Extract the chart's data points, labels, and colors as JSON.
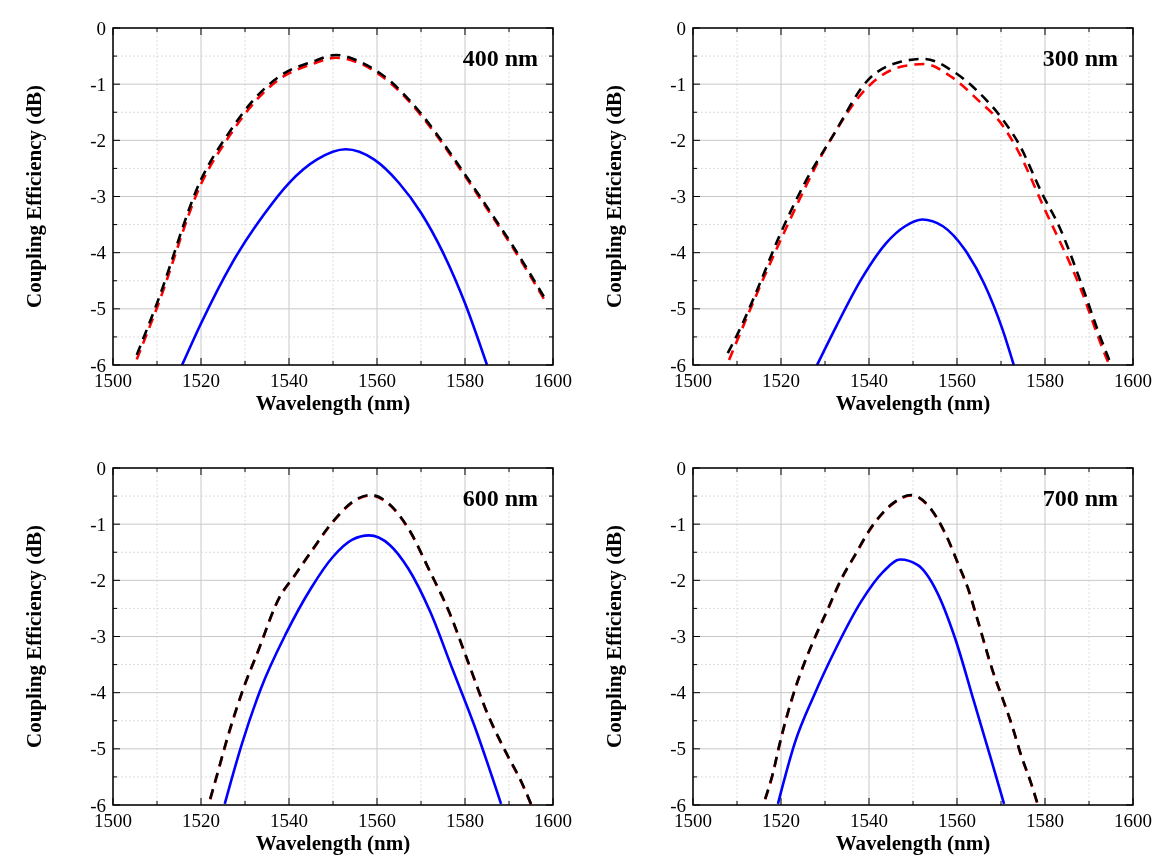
{
  "chart_data": [
    {
      "type": "line",
      "xlabel": "Wavelength (nm)",
      "ylabel": "Coupling Efficiency (dB)",
      "annotations": [
        "400 nm"
      ],
      "xlim": [
        1500,
        1600
      ],
      "ylim": [
        -6,
        0
      ],
      "grid": true,
      "xticks": [
        1500,
        {
          "value": 1510,
          "label": null
        },
        1520,
        {
          "value": 1530,
          "label": null
        },
        1540,
        {
          "value": 1550,
          "label": null
        },
        1560,
        {
          "value": 1570,
          "label": null
        },
        1580,
        {
          "value": 1590,
          "label": null
        },
        1600
      ],
      "yticks": [
        -6,
        {
          "value": -5.5,
          "label": null
        },
        -5,
        {
          "value": -4.5,
          "label": null
        },
        -4,
        {
          "value": -3.5,
          "label": null
        },
        -3,
        {
          "value": -2.5,
          "label": null
        },
        -2,
        {
          "value": -1.5,
          "label": null
        },
        -1,
        {
          "value": -0.5,
          "label": null
        },
        0
      ],
      "series": [
        {
          "color": "#ff0000",
          "line_style": "dashed",
          "x": [
            1505.4,
            1510,
            1520,
            1526.4,
            1531.4,
            1538.6,
            1545,
            1550.7,
            1556.4,
            1562.9,
            1567.9,
            1573.6,
            1577.9,
            1582.1,
            1586.4,
            1590.7,
            1597.9
          ],
          "values": [
            -5.9,
            -4.98,
            -2.78,
            -1.93,
            -1.39,
            -0.87,
            -0.65,
            -0.53,
            -0.64,
            -0.97,
            -1.36,
            -1.92,
            -2.4,
            -2.88,
            -3.38,
            -3.89,
            -4.82
          ]
        },
        {
          "color": "#000000",
          "line_style": "dashed",
          "x": [
            1505.4,
            1510,
            1520,
            1526.4,
            1531.4,
            1538.6,
            1545,
            1550.7,
            1556.4,
            1562.9,
            1567.9,
            1573.6,
            1577.9,
            1582.1,
            1586.4,
            1590.7,
            1597.9
          ],
          "values": [
            -5.82,
            -4.9,
            -2.7,
            -1.86,
            -1.33,
            -0.82,
            -0.61,
            -0.48,
            -0.61,
            -0.94,
            -1.33,
            -1.89,
            -2.37,
            -2.85,
            -3.35,
            -3.86,
            -4.78
          ]
        },
        {
          "color": "#0000ff",
          "line_style": "solid",
          "x": [
            1515.7,
            1520,
            1527.1,
            1534.3,
            1540,
            1546.4,
            1552.9,
            1559.3,
            1565,
            1570,
            1575,
            1580,
            1585
          ],
          "values": [
            -6,
            -5.26,
            -4.18,
            -3.32,
            -2.76,
            -2.34,
            -2.16,
            -2.34,
            -2.76,
            -3.29,
            -4,
            -4.9,
            -6
          ]
        }
      ]
    },
    {
      "type": "line",
      "xlabel": "Wavelength (nm)",
      "ylabel": "Coupling Efficiency (dB)",
      "annotations": [
        "300 nm"
      ],
      "xlim": [
        1500,
        1600
      ],
      "ylim": [
        -6,
        0
      ],
      "grid": true,
      "xticks": [
        1500,
        {
          "value": 1510,
          "label": null
        },
        1520,
        {
          "value": 1530,
          "label": null
        },
        1540,
        {
          "value": 1550,
          "label": null
        },
        1560,
        {
          "value": 1570,
          "label": null
        },
        1580,
        {
          "value": 1590,
          "label": null
        },
        1600
      ],
      "yticks": [
        -6,
        {
          "value": -5.5,
          "label": null
        },
        -5,
        {
          "value": -4.5,
          "label": null
        },
        -4,
        {
          "value": -3.5,
          "label": null
        },
        -3,
        {
          "value": -2.5,
          "label": null
        },
        -2,
        {
          "value": -1.5,
          "label": null
        },
        -1,
        {
          "value": -0.5,
          "label": null
        },
        0
      ],
      "series": [
        {
          "color": "#ff0000",
          "line_style": "dashed",
          "x": [
            1508.2,
            1519.6,
            1531.1,
            1539.6,
            1546.8,
            1552.5,
            1558.9,
            1564.6,
            1570.4,
            1573.9,
            1579.6,
            1588.2,
            1593.2,
            1594.3
          ],
          "values": [
            -5.91,
            -3.83,
            -2.01,
            -1.06,
            -0.7,
            -0.64,
            -0.88,
            -1.27,
            -1.74,
            -2.19,
            -3.17,
            -4.66,
            -5.73,
            -5.94
          ]
        },
        {
          "color": "#000000",
          "line_style": "dashed",
          "x": [
            1507.9,
            1511.1,
            1514.6,
            1519.6,
            1525.4,
            1531.8,
            1539.6,
            1546.8,
            1552.5,
            1558.9,
            1564.6,
            1570.4,
            1573.9,
            1579.6,
            1583.2,
            1588.2,
            1592.5,
            1594.6
          ],
          "values": [
            -5.79,
            -5.29,
            -4.66,
            -3.71,
            -2.76,
            -1.92,
            -0.94,
            -0.61,
            -0.55,
            -0.76,
            -1.12,
            -1.63,
            -2.04,
            -2.99,
            -3.53,
            -4.54,
            -5.49,
            -5.91
          ]
        },
        {
          "color": "#0000ff",
          "line_style": "solid",
          "x": [
            1528.2,
            1532.5,
            1538.2,
            1543.9,
            1548.2,
            1552.1,
            1556.8,
            1561.8,
            1566.1,
            1570.4,
            1572.9
          ],
          "values": [
            -6,
            -5.32,
            -4.48,
            -3.83,
            -3.53,
            -3.41,
            -3.53,
            -3.95,
            -4.54,
            -5.38,
            -6
          ]
        }
      ]
    },
    {
      "type": "line",
      "xlabel": "Wavelength (nm)",
      "ylabel": "Coupling Efficiency (dB)",
      "annotations": [
        "600 nm"
      ],
      "xlim": [
        1500,
        1600
      ],
      "ylim": [
        -6,
        0
      ],
      "grid": true,
      "xticks": [
        1500,
        {
          "value": 1510,
          "label": null
        },
        1520,
        {
          "value": 1530,
          "label": null
        },
        1540,
        {
          "value": 1550,
          "label": null
        },
        1560,
        {
          "value": 1570,
          "label": null
        },
        1580,
        {
          "value": 1590,
          "label": null
        },
        1600
      ],
      "yticks": [
        -6,
        {
          "value": -5.5,
          "label": null
        },
        -5,
        {
          "value": -4.5,
          "label": null
        },
        -4,
        {
          "value": -3.5,
          "label": null
        },
        -3,
        {
          "value": -2.5,
          "label": null
        },
        -2,
        {
          "value": -1.5,
          "label": null
        },
        -1,
        {
          "value": -0.5,
          "label": null
        },
        0
      ],
      "series": [
        {
          "color": "#ff0000",
          "line_style": "dashed",
          "x": [
            1522.1,
            1523.9,
            1525.7,
            1529.6,
            1532.9,
            1537.9,
            1541.1,
            1545,
            1550,
            1555.7,
            1558.6,
            1562.9,
            1567.1,
            1572.1,
            1576.4,
            1580.7,
            1585,
            1589.3,
            1592.9,
            1595
          ],
          "values": [
            -5.9,
            -5.4,
            -4.9,
            -3.94,
            -3.28,
            -2.3,
            -1.94,
            -1.5,
            -0.96,
            -0.55,
            -0.49,
            -0.66,
            -1.08,
            -1.86,
            -2.57,
            -3.46,
            -4.36,
            -5.07,
            -5.61,
            -5.99
          ]
        },
        {
          "color": "#000000",
          "line_style": "dashed",
          "x": [
            1522.1,
            1523.9,
            1525.7,
            1529.6,
            1532.9,
            1537.9,
            1541.1,
            1545,
            1550,
            1555.7,
            1558.6,
            1562.9,
            1567.1,
            1572.1,
            1576.4,
            1580.7,
            1585,
            1589.3,
            1592.9,
            1595
          ],
          "values": [
            -5.89,
            -5.39,
            -4.88,
            -3.93,
            -3.27,
            -2.29,
            -1.93,
            -1.49,
            -0.95,
            -0.54,
            -0.48,
            -0.65,
            -1.07,
            -1.85,
            -2.56,
            -3.45,
            -4.35,
            -5.06,
            -5.6,
            -5.98
          ]
        },
        {
          "color": "#0000ff",
          "line_style": "solid",
          "x": [
            1525.4,
            1529.3,
            1533.6,
            1539.3,
            1545,
            1550,
            1554.3,
            1558.2,
            1562.9,
            1567.1,
            1572.1,
            1577.1,
            1582.1,
            1588.2
          ],
          "values": [
            -5.98,
            -4.91,
            -3.93,
            -2.95,
            -2.14,
            -1.58,
            -1.28,
            -1.2,
            -1.37,
            -1.79,
            -2.56,
            -3.57,
            -4.58,
            -5.98
          ]
        }
      ]
    },
    {
      "type": "line",
      "xlabel": "Wavelength (nm)",
      "ylabel": "Coupling Efficiency (dB)",
      "annotations": [
        "700 nm"
      ],
      "xlim": [
        1500,
        1600
      ],
      "ylim": [
        -6,
        0
      ],
      "grid": true,
      "xticks": [
        1500,
        {
          "value": 1510,
          "label": null
        },
        1520,
        {
          "value": 1530,
          "label": null
        },
        1540,
        {
          "value": 1550,
          "label": null
        },
        1560,
        {
          "value": 1570,
          "label": null
        },
        1580,
        {
          "value": 1590,
          "label": null
        },
        1600
      ],
      "yticks": [
        -6,
        {
          "value": -5.5,
          "label": null
        },
        -5,
        {
          "value": -4.5,
          "label": null
        },
        -4,
        {
          "value": -3.5,
          "label": null
        },
        -3,
        {
          "value": -2.5,
          "label": null
        },
        -2,
        {
          "value": -1.5,
          "label": null
        },
        -1,
        {
          "value": -0.5,
          "label": null
        },
        0
      ],
      "series": [
        {
          "color": "#ff0000",
          "line_style": "dashed",
          "x": [
            1516.4,
            1518.2,
            1519.6,
            1523.2,
            1525.4,
            1527.9,
            1530.7,
            1533.6,
            1536.8,
            1540.4,
            1545.4,
            1549.6,
            1553.9,
            1557.5,
            1560.4,
            1562.5,
            1564.6,
            1568.2,
            1570.4,
            1572.5,
            1574.6,
            1576.8,
            1578.2
          ],
          "values": [
            -5.9,
            -5.43,
            -4.95,
            -3.94,
            -3.46,
            -2.99,
            -2.51,
            -2,
            -1.56,
            -1.08,
            -0.64,
            -0.49,
            -0.72,
            -1.2,
            -1.74,
            -2.15,
            -2.69,
            -3.64,
            -4.12,
            -4.59,
            -5.13,
            -5.61,
            -5.96
          ]
        },
        {
          "color": "#000000",
          "line_style": "dashed",
          "x": [
            1516.4,
            1518.2,
            1519.6,
            1523.2,
            1525.4,
            1527.9,
            1530.7,
            1533.6,
            1536.8,
            1540.4,
            1545.4,
            1549.6,
            1553.9,
            1557.5,
            1560.4,
            1562.5,
            1564.6,
            1568.2,
            1570.4,
            1572.5,
            1574.6,
            1576.8,
            1578.2
          ],
          "values": [
            -5.89,
            -5.42,
            -4.94,
            -3.93,
            -3.45,
            -2.98,
            -2.5,
            -1.99,
            -1.55,
            -1.07,
            -0.63,
            -0.48,
            -0.71,
            -1.19,
            -1.73,
            -2.14,
            -2.68,
            -3.63,
            -4.11,
            -4.58,
            -5.12,
            -5.6,
            -5.95
          ]
        },
        {
          "color": "#0000ff",
          "line_style": "solid",
          "x": [
            1519.3,
            1523.2,
            1527.5,
            1532.5,
            1538.2,
            1543.2,
            1547.1,
            1551.1,
            1555.4,
            1559.6,
            1563.9,
            1567.5,
            1570.7
          ],
          "values": [
            -5.98,
            -4.88,
            -4.05,
            -3.21,
            -2.38,
            -1.85,
            -1.63,
            -1.73,
            -2.2,
            -3.04,
            -4.17,
            -5.12,
            -5.98
          ]
        }
      ]
    }
  ]
}
